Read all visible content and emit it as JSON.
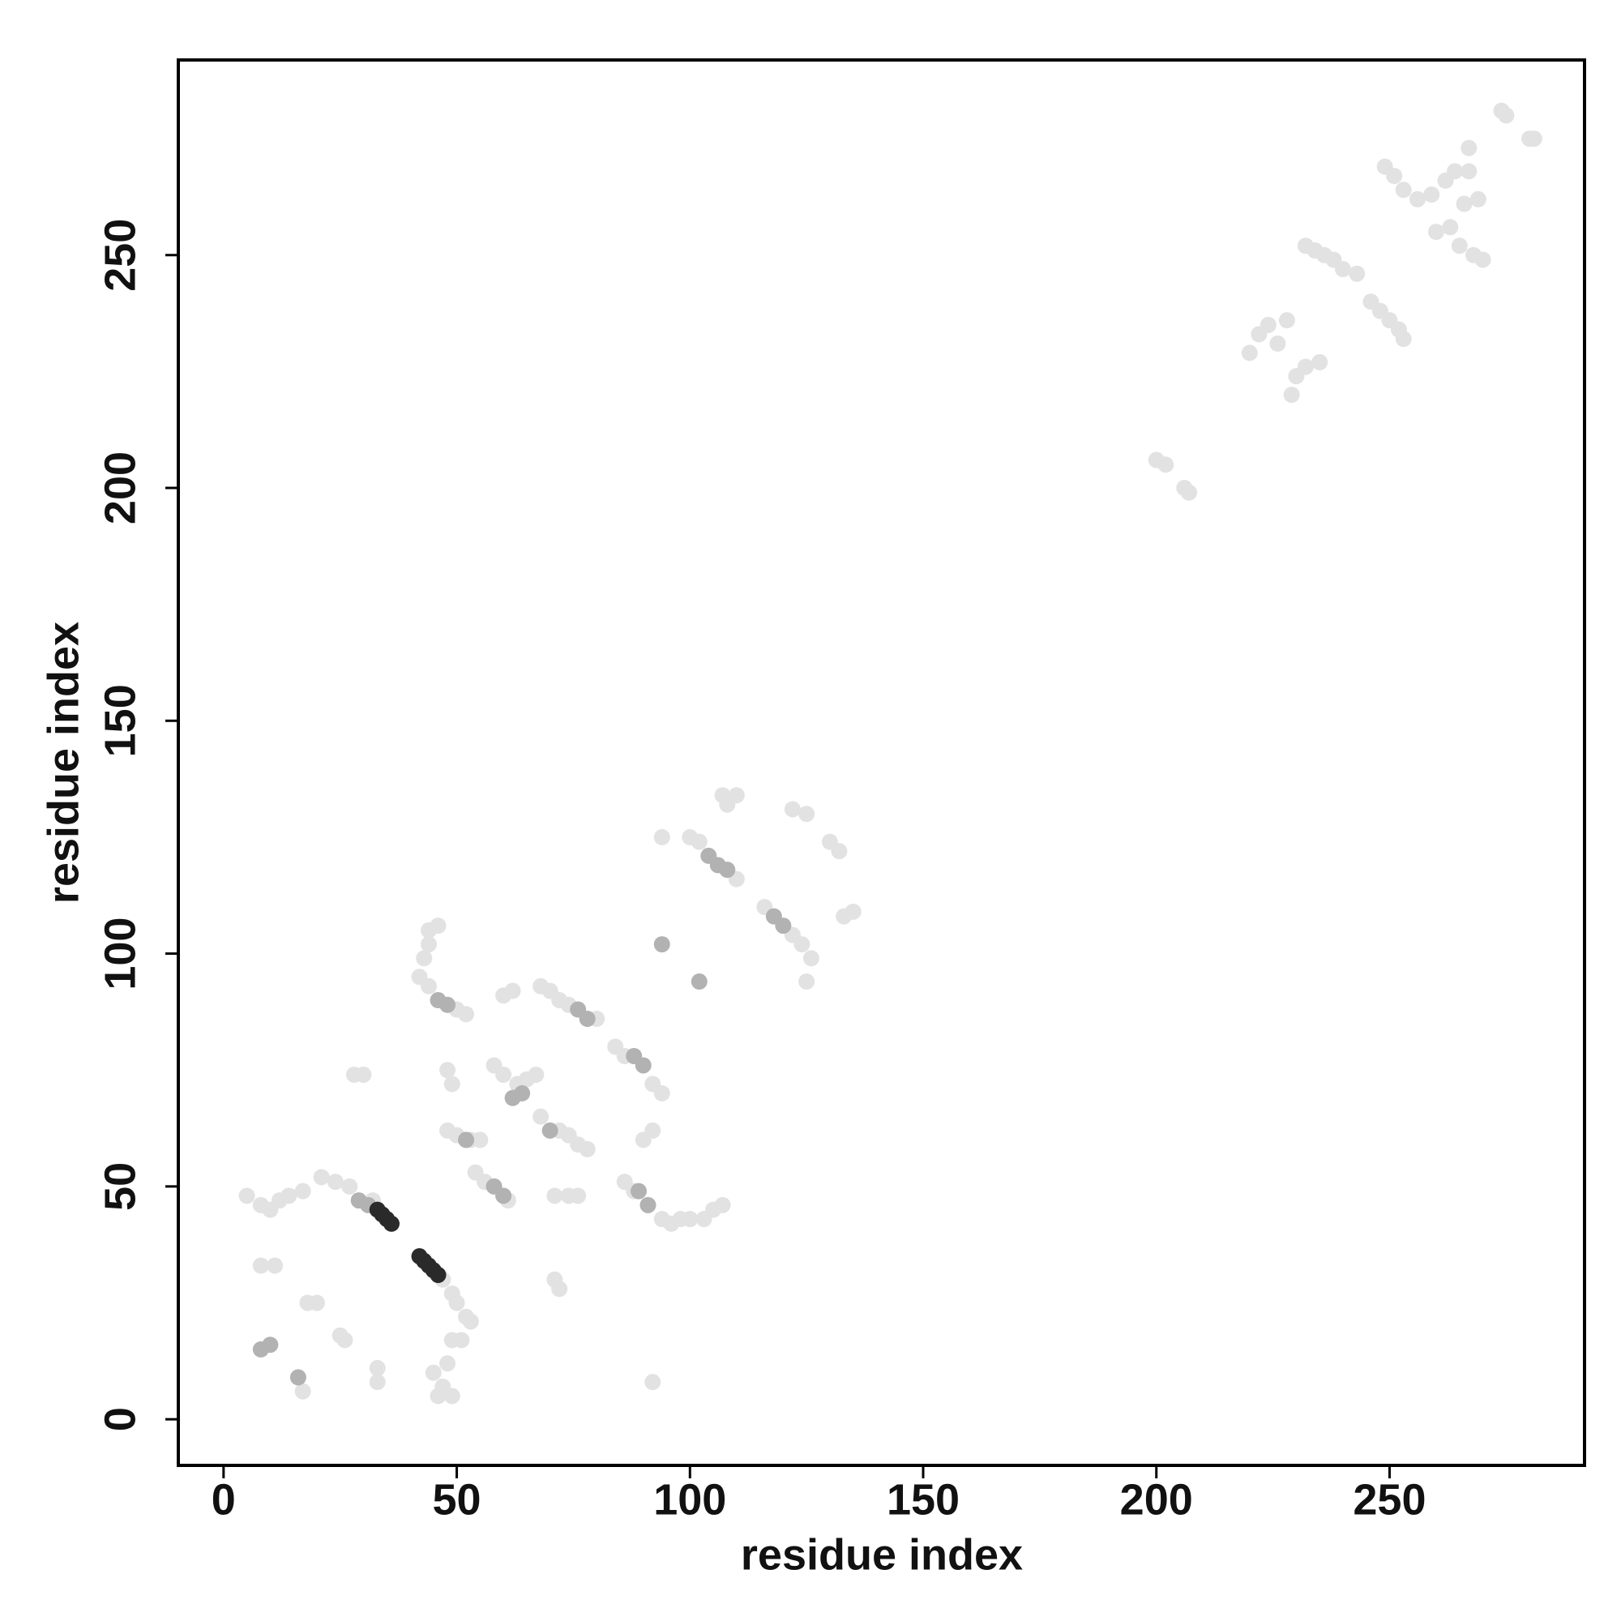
{
  "chart_data": {
    "type": "scatter",
    "x_label": "residue index",
    "y_label": "residue index",
    "xlim": [
      -9.7,
      291.8
    ],
    "ylim": [
      -9.9,
      291.9
    ],
    "xticks": [
      0,
      50,
      100,
      150,
      200,
      250
    ],
    "yticks": [
      0,
      50,
      100,
      150,
      200,
      250
    ],
    "series": [
      {
        "color": "#e2e2e2",
        "x": [
          21,
          24,
          27,
          32,
          47,
          49,
          50,
          52,
          53,
          5,
          8,
          10,
          12,
          14,
          17,
          8,
          11,
          17,
          18,
          20,
          25,
          26,
          28,
          30,
          33,
          33,
          44,
          46,
          43,
          44,
          42,
          44,
          50,
          52,
          45,
          47,
          48,
          49,
          51,
          46,
          49,
          48,
          49,
          48,
          50,
          53,
          55,
          54,
          56,
          61,
          58,
          60,
          63,
          65,
          67,
          60,
          62,
          68,
          70,
          72,
          74,
          80,
          68,
          72,
          74,
          76,
          78,
          71,
          74,
          76,
          71,
          72,
          84,
          86,
          92,
          94,
          86,
          88,
          94,
          96,
          98,
          100,
          103,
          105,
          107,
          90,
          92,
          92,
          94,
          100,
          102,
          110,
          107,
          110,
          108,
          116,
          122,
          124,
          126,
          122,
          125,
          130,
          132,
          133,
          135,
          125,
          200,
          202,
          206,
          207,
          220,
          222,
          224,
          226,
          228,
          229,
          230,
          232,
          235,
          232,
          234,
          236,
          238,
          240,
          243,
          246,
          248,
          250,
          252,
          253,
          249,
          251,
          253,
          256,
          259,
          262,
          264,
          263,
          265,
          268,
          270,
          260,
          266,
          269,
          267,
          267,
          274,
          275,
          280,
          281
        ],
        "y": [
          52,
          51,
          50,
          47,
          30,
          27,
          25,
          22,
          21,
          48,
          46,
          45,
          47,
          48,
          49,
          33,
          33,
          6,
          25,
          25,
          18,
          17,
          74,
          74,
          11,
          8,
          105,
          106,
          99,
          102,
          95,
          93,
          88,
          87,
          10,
          7,
          12,
          17,
          17,
          5,
          5,
          75,
          72,
          62,
          61,
          60,
          60,
          53,
          51,
          47,
          76,
          74,
          72,
          73,
          74,
          91,
          92,
          93,
          92,
          90,
          89,
          86,
          65,
          62,
          61,
          59,
          58,
          48,
          48,
          48,
          30,
          28,
          80,
          78,
          72,
          70,
          51,
          49,
          43,
          42,
          43,
          43,
          43,
          45,
          46,
          60,
          62,
          8,
          125,
          125,
          124,
          116,
          134,
          134,
          132,
          110,
          104,
          102,
          99,
          131,
          130,
          124,
          122,
          108,
          109,
          94,
          206,
          205,
          200,
          199,
          229,
          233,
          235,
          231,
          236,
          220,
          224,
          226,
          227,
          252,
          251,
          250,
          249,
          247,
          246,
          240,
          238,
          236,
          234,
          232,
          269,
          267,
          264,
          262,
          263,
          266,
          268,
          256,
          252,
          250,
          249,
          255,
          261,
          262,
          273,
          268,
          281,
          280,
          275,
          275
        ]
      },
      {
        "color": "#b2b2b2",
        "x": [
          29,
          31,
          62,
          64,
          70,
          76,
          78,
          88,
          90,
          104,
          106,
          108,
          118,
          120,
          46,
          48,
          10,
          8,
          16,
          94,
          102,
          58,
          60,
          89,
          91,
          52
        ],
        "y": [
          47,
          46,
          69,
          70,
          62,
          88,
          86,
          78,
          76,
          121,
          119,
          118,
          108,
          106,
          90,
          89,
          16,
          15,
          9,
          102,
          94,
          50,
          48,
          49,
          46,
          60
        ]
      },
      {
        "color": "#2a2a2a",
        "x": [
          33,
          34,
          35,
          36,
          42,
          43,
          44,
          45,
          46
        ],
        "y": [
          45,
          44,
          43,
          42,
          35,
          34,
          33,
          32,
          31
        ]
      }
    ]
  }
}
